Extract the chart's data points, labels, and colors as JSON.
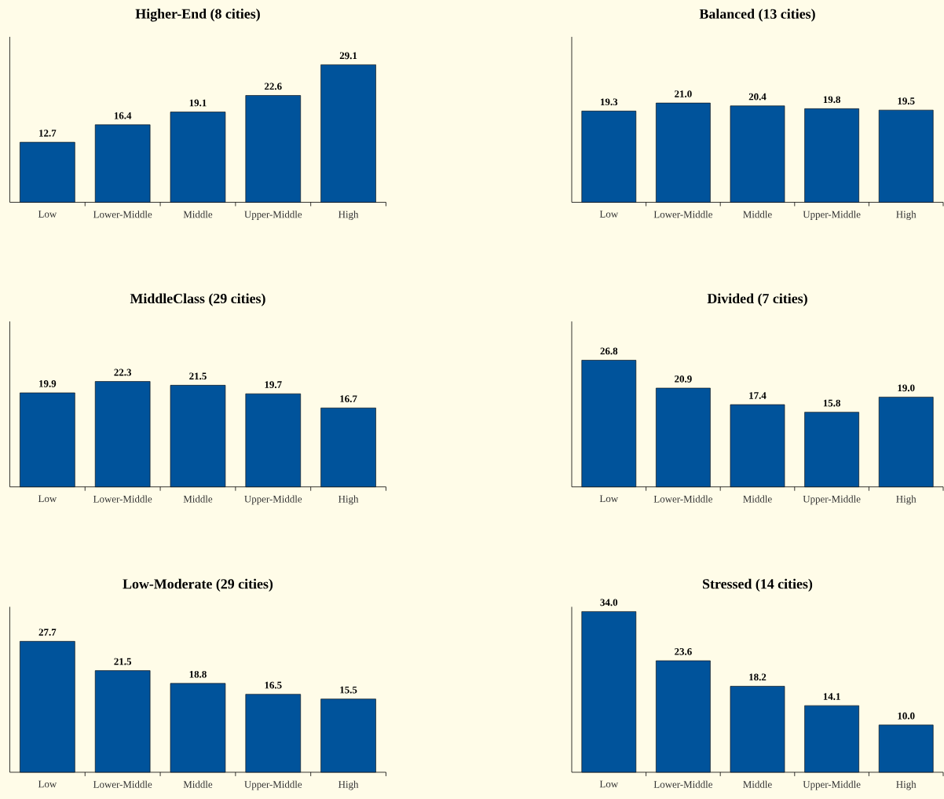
{
  "chart_data": [
    {
      "type": "bar",
      "title": "Higher-End (8 cities)",
      "categories": [
        "Low",
        "Lower-Middle",
        "Middle",
        "Upper-Middle",
        "High"
      ],
      "values": [
        12.7,
        16.4,
        19.1,
        22.6,
        29.1
      ],
      "value_labels": [
        "12.7",
        "16.4",
        "19.1",
        "22.6",
        "29.1"
      ],
      "color": "#00539b",
      "ylim": [
        0,
        35
      ],
      "tick_labels": "x"
    },
    {
      "type": "bar",
      "title": "Balanced (13 cities)",
      "categories": [
        "Low",
        "Lower-Middle",
        "Middle",
        "Upper-Middle",
        "High"
      ],
      "values": [
        19.3,
        21.0,
        20.4,
        19.8,
        19.5
      ],
      "value_labels": [
        "19.3",
        "21.0",
        "20.4",
        "19.8",
        "19.5"
      ],
      "color": "#00539b",
      "ylim": [
        0,
        35
      ],
      "tick_labels": "x"
    },
    {
      "type": "bar",
      "title": "MiddleClass (29 cities)",
      "categories": [
        "Low",
        "Lower-Middle",
        "Middle",
        "Upper-Middle",
        "High"
      ],
      "values": [
        19.9,
        22.3,
        21.5,
        19.7,
        16.7
      ],
      "value_labels": [
        "19.9",
        "22.3",
        "21.5",
        "19.7",
        "16.7"
      ],
      "color": "#00539b",
      "ylim": [
        0,
        35
      ],
      "tick_labels": "x"
    },
    {
      "type": "bar",
      "title": "Divided (7 cities)",
      "categories": [
        "Low",
        "Lower-Middle",
        "Middle",
        "Upper-Middle",
        "High"
      ],
      "values": [
        26.8,
        20.9,
        17.4,
        15.8,
        19.0
      ],
      "value_labels": [
        "26.8",
        "20.9",
        "17.4",
        "15.8",
        "19.0"
      ],
      "color": "#00539b",
      "ylim": [
        0,
        35
      ],
      "tick_labels": "x"
    },
    {
      "type": "bar",
      "title": "Low-Moderate (29 cities)",
      "categories": [
        "Low",
        "Lower-Middle",
        "Middle",
        "Upper-Middle",
        "High"
      ],
      "values": [
        27.7,
        21.5,
        18.8,
        16.5,
        15.5
      ],
      "value_labels": [
        "27.7",
        "21.5",
        "18.8",
        "16.5",
        "15.5"
      ],
      "color": "#00539b",
      "ylim": [
        0,
        35
      ],
      "tick_labels": "x"
    },
    {
      "type": "bar",
      "title": "Stressed (14 cities)",
      "categories": [
        "Low",
        "Lower-Middle",
        "Middle",
        "Upper-Middle",
        "High"
      ],
      "values": [
        34.0,
        23.6,
        18.2,
        14.1,
        10.0
      ],
      "value_labels": [
        "34.0",
        "23.6",
        "18.2",
        "14.1",
        "10.0"
      ],
      "color": "#00539b",
      "ylim": [
        0,
        35
      ],
      "tick_labels": "x"
    }
  ]
}
